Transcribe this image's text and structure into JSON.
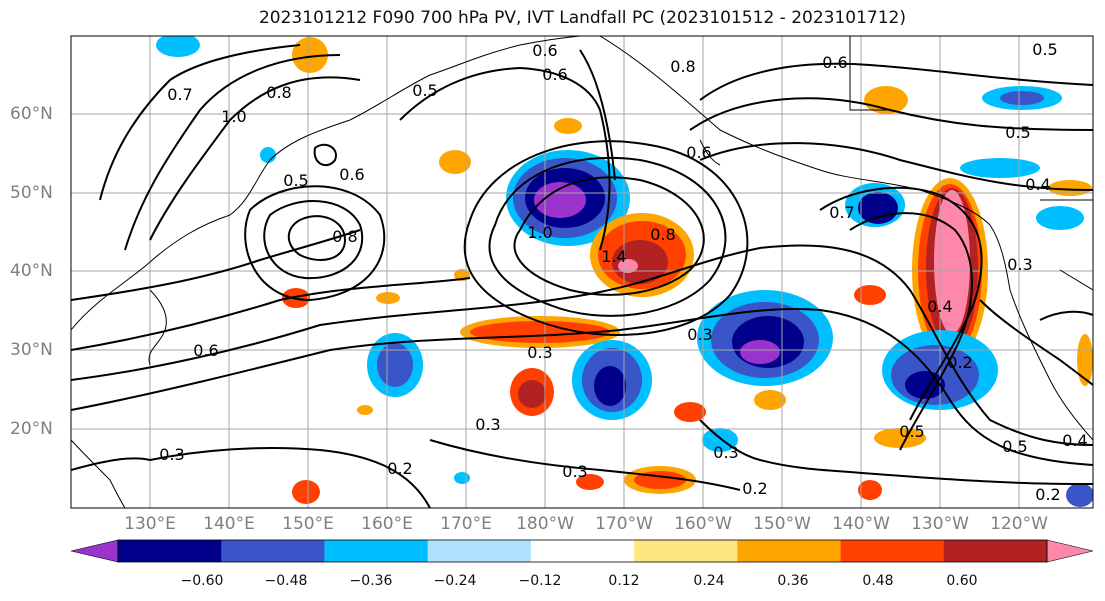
{
  "title": "2023101212 F090 700 hPa PV, IVT Landfall PC (2023101512 - 2023101712)",
  "map": {
    "lon_labels": [
      "130°E",
      "140°E",
      "150°E",
      "160°E",
      "170°E",
      "180°W",
      "170°W",
      "160°W",
      "150°W",
      "140°W",
      "130°W",
      "120°W"
    ],
    "lat_labels": [
      "60°N",
      "50°N",
      "40°N",
      "30°N",
      "20°N"
    ],
    "grid_color": "#a6a6a6",
    "contour_color": "#000000",
    "contour_labels": [
      {
        "text": "0.7"
      },
      {
        "text": "1.0"
      },
      {
        "text": "0.8"
      },
      {
        "text": "0.5"
      },
      {
        "text": "0.6"
      },
      {
        "text": "0.8"
      },
      {
        "text": "0.5"
      },
      {
        "text": "0.6"
      },
      {
        "text": "0.3"
      },
      {
        "text": "0.3"
      },
      {
        "text": "0.2"
      },
      {
        "text": "0.3"
      },
      {
        "text": "1.0"
      },
      {
        "text": "1.4"
      },
      {
        "text": "0.8"
      },
      {
        "text": "0.6"
      },
      {
        "text": "0.6"
      },
      {
        "text": "0.8"
      },
      {
        "text": "0.6"
      },
      {
        "text": "0.5"
      },
      {
        "text": "0.4"
      },
      {
        "text": "0.7"
      },
      {
        "text": "0.4"
      },
      {
        "text": "0.3"
      },
      {
        "text": "0.2"
      },
      {
        "text": "0.3"
      },
      {
        "text": "0.2"
      },
      {
        "text": "0.5"
      },
      {
        "text": "0.5"
      },
      {
        "text": "0.4"
      },
      {
        "text": "0.2"
      },
      {
        "text": "0.3"
      },
      {
        "text": "0.5"
      },
      {
        "text": "0.6"
      },
      {
        "text": "0.3"
      }
    ]
  },
  "colorbar": {
    "colors": [
      "#9933cc",
      "#00008b",
      "#3a55c8",
      "#00bfff",
      "#b0e2ff",
      "#ffffff",
      "#ffe680",
      "#ffa500",
      "#ff4000",
      "#b22222",
      "#ff88aa"
    ],
    "tick_labels": [
      "−0.60",
      "−0.48",
      "−0.36",
      "−0.24",
      "−0.12",
      "0.12",
      "0.24",
      "0.36",
      "0.48",
      "0.60"
    ]
  }
}
